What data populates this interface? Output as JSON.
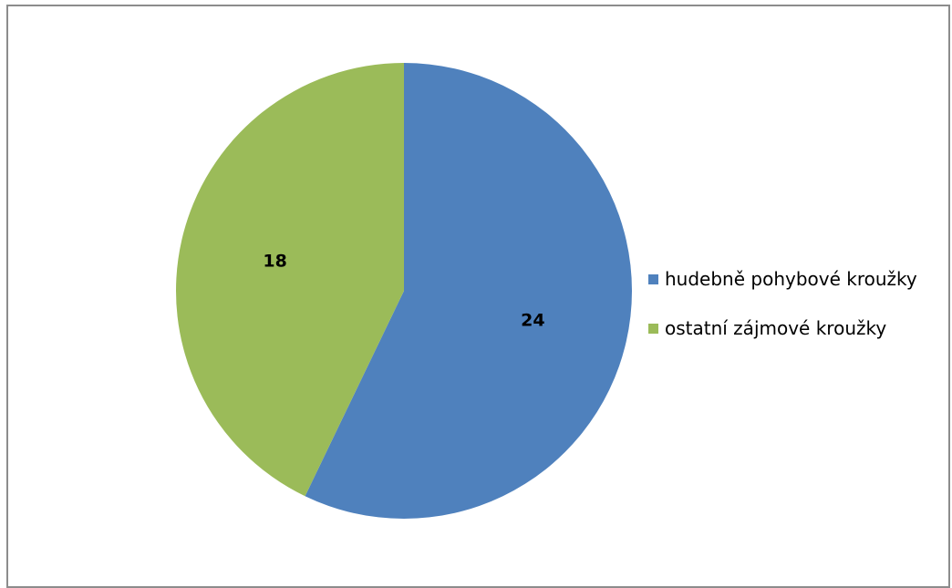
{
  "chart_data": {
    "type": "pie",
    "categories": [
      "hudebně pohybové kroužky",
      "ostatní zájmové kroužky"
    ],
    "values": [
      24,
      18
    ],
    "data_labels": [
      "24",
      "18"
    ],
    "colors": [
      "#4f81bd",
      "#9bbb59"
    ],
    "start_angle": "12 o'clock",
    "direction": "clockwise",
    "legend_position": "right"
  }
}
